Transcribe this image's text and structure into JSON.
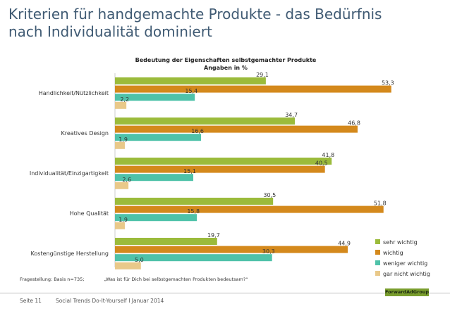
{
  "header": {
    "title_line1": "Kriterien für handgemachte Produkte - das Bedürfnis",
    "title_line2": "nach Individualität dominiert"
  },
  "chart_data": {
    "type": "bar",
    "orientation": "horizontal",
    "title": "Bedeutung der Eigenschaften selbstgemachter Produkte",
    "subtitle": "Angaben in %",
    "categories": [
      "Handlichkeit/Nützlichkeit",
      "Kreatives Design",
      "Individualität/Einzigartigkeit",
      "Hohe Qualität",
      "Kostengünstige Herstellung"
    ],
    "series": [
      {
        "name": "sehr wichtig",
        "color": "#9bbb3b",
        "values": [
          29.1,
          34.7,
          41.8,
          30.5,
          19.7
        ],
        "labels": [
          "29,1",
          "34,7",
          "41,8",
          "30,5",
          "19,7"
        ]
      },
      {
        "name": "wichtig",
        "color": "#d4891c",
        "values": [
          53.3,
          46.8,
          40.5,
          51.8,
          44.9
        ],
        "labels": [
          "53,3",
          "46,8",
          "40,5",
          "51,8",
          "44,9"
        ]
      },
      {
        "name": "weniger wichtig",
        "color": "#4fc2a9",
        "values": [
          15.4,
          16.6,
          15.1,
          15.8,
          30.3
        ],
        "labels": [
          "15,4",
          "16,6",
          "15,1",
          "15,8",
          "30,3"
        ]
      },
      {
        "name": "gar nicht wichtig",
        "color": "#e9c98a",
        "values": [
          2.2,
          1.9,
          2.6,
          1.9,
          5.0
        ],
        "labels": [
          "2,2",
          "1,9",
          "2,6",
          "1,9",
          "5,0"
        ]
      }
    ],
    "xlim": [
      0,
      55
    ],
    "legend_position": "bottom-right"
  },
  "question": {
    "label": "Fragestellung: Basis n=735;",
    "text": "„Was ist für Dich bei selbstgemachten Produkten bedeutsam?“"
  },
  "footer": {
    "page": "Seite 11",
    "source": "Social Trends Do-It-Yourself I Januar 2014",
    "logo": "ForwardAdGroup"
  }
}
